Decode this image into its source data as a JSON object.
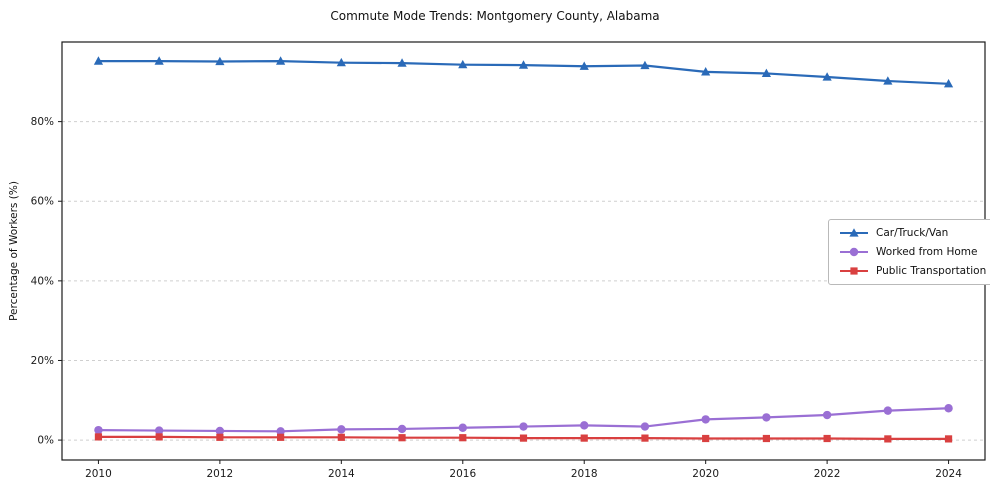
{
  "chart_data": {
    "type": "line",
    "title": "Commute Mode Trends: Montgomery County, Alabama",
    "xlabel": "",
    "ylabel": "Percentage of Workers (%)",
    "x": [
      2010,
      2011,
      2012,
      2013,
      2014,
      2015,
      2016,
      2017,
      2018,
      2019,
      2020,
      2021,
      2022,
      2023,
      2024
    ],
    "x_ticks": [
      2010,
      2012,
      2014,
      2016,
      2018,
      2020,
      2022,
      2024
    ],
    "y_ticks": [
      0,
      20,
      40,
      60,
      80
    ],
    "y_tick_suffix": "%",
    "xlim": [
      2009.4,
      2024.6
    ],
    "ylim": [
      -5,
      100
    ],
    "grid": true,
    "grid_style": "dashed",
    "legend_position": "center-right",
    "series": [
      {
        "name": "Car/Truck/Van",
        "color": "#2a6ab8",
        "marker": "triangle",
        "values": [
          95.2,
          95.2,
          95.1,
          95.2,
          94.8,
          94.7,
          94.3,
          94.2,
          93.9,
          94.1,
          92.5,
          92.1,
          91.2,
          90.2,
          89.5
        ]
      },
      {
        "name": "Worked from Home",
        "color": "#9a6fd4",
        "marker": "circle",
        "values": [
          2.5,
          2.4,
          2.3,
          2.2,
          2.7,
          2.8,
          3.1,
          3.4,
          3.7,
          3.4,
          5.2,
          5.7,
          6.3,
          7.4,
          8.0
        ]
      },
      {
        "name": "Public Transportation",
        "color": "#d94040",
        "marker": "square",
        "values": [
          0.8,
          0.8,
          0.7,
          0.7,
          0.7,
          0.6,
          0.6,
          0.5,
          0.5,
          0.5,
          0.4,
          0.4,
          0.4,
          0.3,
          0.3
        ]
      }
    ]
  }
}
